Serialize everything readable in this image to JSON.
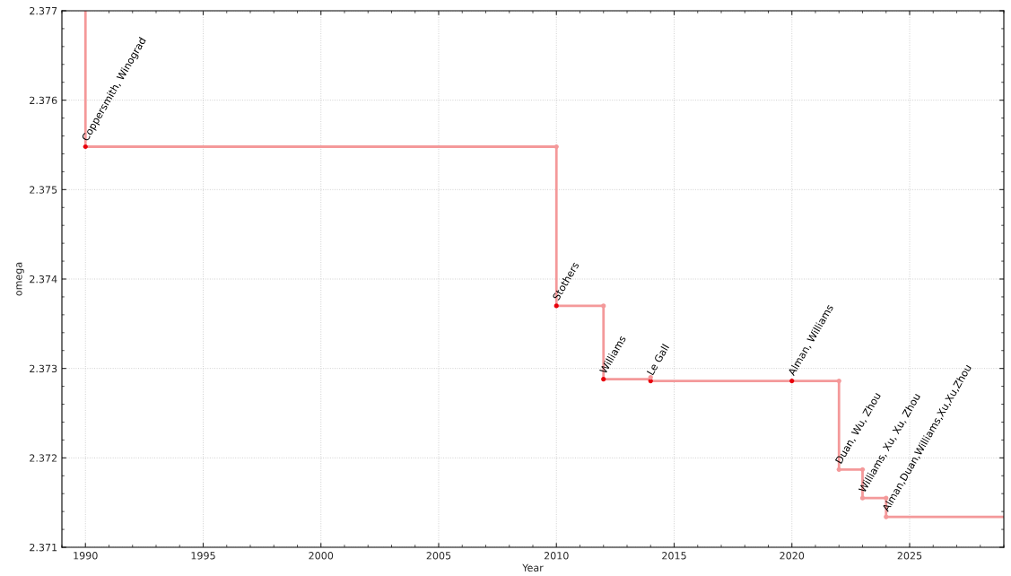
{
  "chart_data": {
    "type": "step",
    "xlabel": "Year",
    "ylabel": "omega",
    "xlim": [
      1989,
      2029
    ],
    "xticks": [
      1990,
      1995,
      2000,
      2005,
      2010,
      2015,
      2020,
      2025
    ],
    "ylim": [
      2.371,
      2.377
    ],
    "yticks": [
      2.371,
      2.372,
      2.373,
      2.374,
      2.375,
      2.376,
      2.377
    ],
    "grid": true,
    "line_style": "solid",
    "series": [
      {
        "color": "#f4999a",
        "x": [
          1990,
          1990,
          2010,
          2012,
          2014,
          2020,
          2022,
          2023,
          2024,
          2029
        ],
        "values": [
          2.377,
          2.37548,
          2.3737,
          2.37288,
          2.37286,
          2.37286,
          2.37187,
          2.37155,
          2.37134,
          2.37134
        ]
      },
      {
        "type": "scatter",
        "color": "#e8000b",
        "x": [
          1990,
          2010,
          2012,
          2014,
          2020
        ],
        "values": [
          2.37548,
          2.3737,
          2.37288,
          2.37286,
          2.37286
        ]
      },
      {
        "type": "scatter",
        "color": "#f4999a",
        "x": [
          2010,
          2012,
          2014,
          2022,
          2022,
          2023,
          2023,
          2024,
          2024
        ],
        "values": [
          2.37548,
          2.3737,
          2.3729,
          2.37286,
          2.37187,
          2.37187,
          2.37155,
          2.37155,
          2.37134
        ]
      }
    ],
    "annotations": [
      {
        "text": "Coppersmith, Winograd",
        "x": 1990,
        "y": 2.37548
      },
      {
        "text": "Stothers",
        "x": 2010,
        "y": 2.3737
      },
      {
        "text": "Williams",
        "x": 2012,
        "y": 2.37288
      },
      {
        "text": "Le Gall",
        "x": 2014,
        "y": 2.37286
      },
      {
        "text": "Alman, Williams",
        "x": 2020,
        "y": 2.37286
      },
      {
        "text": "Duan, Wu, Zhou",
        "x": 2022,
        "y": 2.37187
      },
      {
        "text": "Williams, Xu, Xu, Zhou",
        "x": 2023,
        "y": 2.37155
      },
      {
        "text": "Alman,Duan,Williams,Xu,Xu,Zhou",
        "x": 2024,
        "y": 2.37134
      }
    ]
  }
}
